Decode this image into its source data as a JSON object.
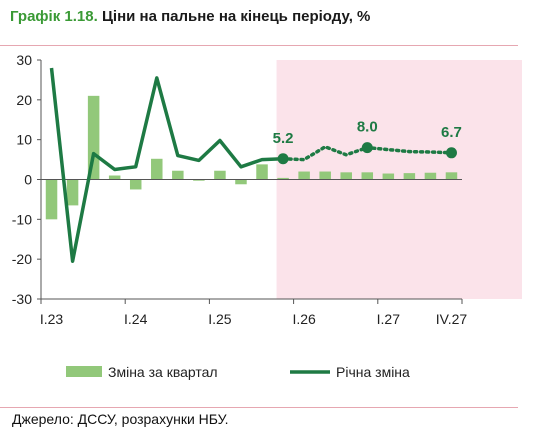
{
  "header": {
    "label": "Графік 1.18.",
    "title": "Ціни на пальне на кінець періоду, %"
  },
  "source": "Джерело: ДССУ, розрахунки НБУ.",
  "colors": {
    "bar": "#92c87a",
    "line": "#1e7a44",
    "forecast_band": "#fbe3ea",
    "title_label": "#3a9a35",
    "rule": "#e6a7b1"
  },
  "chart_data": {
    "type": "bar",
    "title": "Ціни на пальне на кінець періоду, %",
    "categories": [
      "I.23",
      "II.23",
      "III.23",
      "IV.23",
      "I.24",
      "II.24",
      "III.24",
      "IV.24",
      "I.25",
      "II.25",
      "III.25",
      "IV.25",
      "I.26",
      "II.26",
      "III.26",
      "IV.26",
      "I.27",
      "II.27",
      "III.27",
      "IV.27"
    ],
    "tick_labels": [
      {
        "index": 0,
        "label": "I.23"
      },
      {
        "index": 4,
        "label": "I.24"
      },
      {
        "index": 8,
        "label": "I.25"
      },
      {
        "index": 12,
        "label": "I.26"
      },
      {
        "index": 16,
        "label": "I.27"
      },
      {
        "index": 19,
        "label": "IV.27"
      }
    ],
    "ylim": [
      -30,
      30
    ],
    "yticks": [
      -30,
      -20,
      -10,
      0,
      10,
      20,
      30
    ],
    "grid": false,
    "forecast_start_index": 11,
    "legend_position": "bottom",
    "series": [
      {
        "name": "Зміна за квартал",
        "type": "bar",
        "values": [
          -10,
          -6.5,
          21,
          1,
          -2.5,
          5.2,
          2.2,
          -0.3,
          2.2,
          -1.2,
          3.8,
          0.4,
          2,
          2,
          1.8,
          1.8,
          1.5,
          1.6,
          1.7,
          1.8
        ]
      },
      {
        "name": "Річна зміна",
        "type": "line",
        "values": [
          28,
          -20.5,
          6.5,
          2.5,
          3.2,
          25.5,
          6,
          4.8,
          9.8,
          3.2,
          5,
          5.2,
          5,
          8.2,
          6.2,
          8,
          7.5,
          7,
          6.9,
          6.7
        ]
      }
    ],
    "annotations": [
      {
        "index": 11,
        "label": "5.2"
      },
      {
        "index": 15,
        "label": "8.0"
      },
      {
        "index": 19,
        "label": "6.7"
      }
    ]
  }
}
